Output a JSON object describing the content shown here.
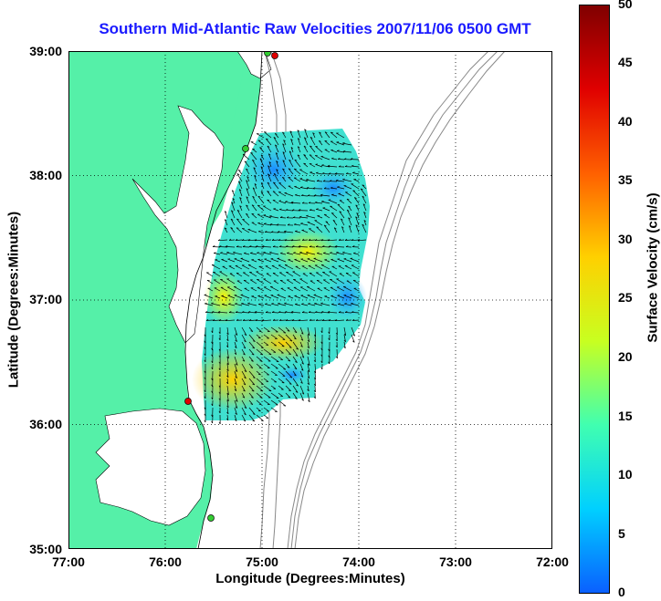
{
  "title": "Southern Mid-Atlantic Raw Velocities 2007/11/06 0500 GMT",
  "x_axis": {
    "label": "Longitude (Degrees:Minutes)",
    "ticks": [
      "77:00",
      "76:00",
      "75:00",
      "74:00",
      "73:00",
      "72:00"
    ]
  },
  "y_axis": {
    "label": "Latitude (Degrees:Minutes)",
    "ticks": [
      "39:00",
      "38:00",
      "37:00",
      "36:00",
      "35:00"
    ]
  },
  "colorbar": {
    "label": "Surface Velocity (cm/s)",
    "ticks": [
      "50",
      "45",
      "40",
      "35",
      "30",
      "25",
      "20",
      "15",
      "10",
      "5",
      "0"
    ],
    "range": [
      0,
      50
    ],
    "colors": [
      "#0a60ff",
      "#00d0ff",
      "#40ffb0",
      "#c8ff20",
      "#ffd000",
      "#ff6000",
      "#e00000",
      "#800000"
    ]
  },
  "map": {
    "land_color": "#55f0a8",
    "water_color": "#ffffff",
    "grid": "dotted",
    "bathymetry_contours": "gray",
    "stations": [
      {
        "color": "#e00000"
      },
      {
        "color": "#e00000"
      },
      {
        "color": "#33cc33"
      },
      {
        "color": "#33cc33"
      }
    ]
  },
  "chart_data": {
    "type": "heatmap",
    "xlim": [
      -77,
      -72
    ],
    "ylim": [
      35,
      39
    ],
    "value_range": [
      0,
      50
    ],
    "field_extent": {
      "lon": [
        -75.5,
        -73.9
      ],
      "lat": [
        36.0,
        38.4
      ]
    },
    "notes_visible": "vector arrows over colored surface velocity field"
  }
}
